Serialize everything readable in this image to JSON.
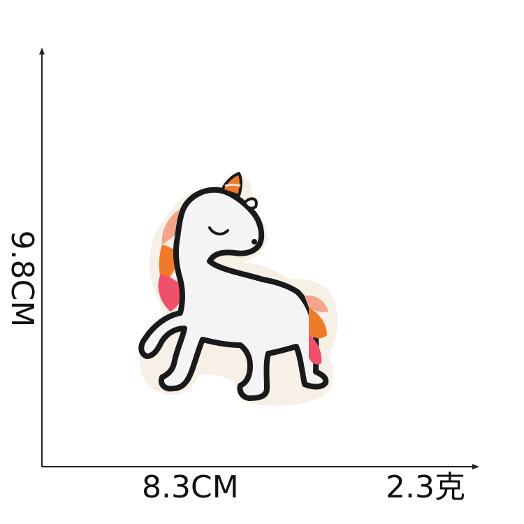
{
  "dimensions": {
    "width_label": "8.3CM",
    "height_label": "9.8CM",
    "weight_label": "2.3克"
  },
  "product": {
    "subject": "unicorn embroidered patch",
    "colors": {
      "outline": "#1a1a1a",
      "body": "#f4f4f6",
      "felt_backing": "#f7f0e6",
      "mane_orange": "#f07a2a",
      "mane_pink": "#f0506a",
      "mane_peach": "#f5a48a",
      "horn_orange": "#f07a2a"
    }
  }
}
